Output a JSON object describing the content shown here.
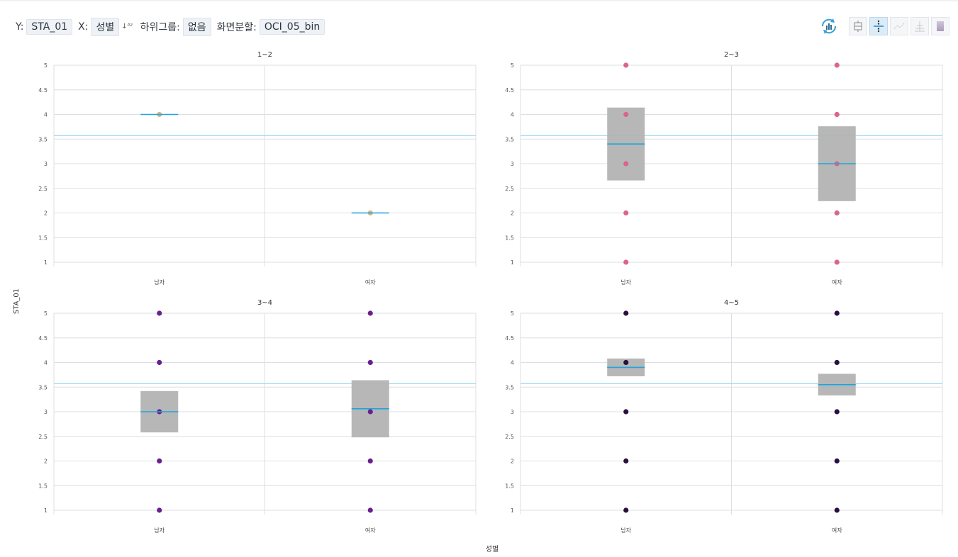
{
  "toolbar": {
    "y_label": "Y:",
    "y_value": "STA_01",
    "x_label": "X:",
    "x_value": "성별",
    "subgroup_label": "하위그룹:",
    "subgroup_value": "없음",
    "split_label": "화면분할:",
    "split_value": "OCI_05_bin"
  },
  "icons": [
    "refresh-chart-icon",
    "boxplot-icon",
    "dot-plot-icon",
    "line-plot-icon",
    "histogram-icon",
    "gradient-icon"
  ],
  "chart_data": [
    {
      "type": "box",
      "title": "1~2",
      "categories": [
        "남자",
        "여자"
      ],
      "ylim": [
        1,
        5
      ],
      "yticks": [
        "1",
        "1.5",
        "2",
        "2.5",
        "3",
        "3.5",
        "4",
        "4.5",
        "5"
      ],
      "reference_line": 3.57,
      "point_color": "#d4b48c",
      "groups": [
        {
          "category": "남자",
          "points": [
            4
          ],
          "mean": 4,
          "box": null
        },
        {
          "category": "여자",
          "points": [
            2
          ],
          "mean": 2,
          "box": null
        }
      ]
    },
    {
      "type": "box",
      "title": "2~3",
      "categories": [
        "남자",
        "여자"
      ],
      "ylim": [
        1,
        5
      ],
      "yticks": [
        "1",
        "1.5",
        "2",
        "2.5",
        "3",
        "3.5",
        "4",
        "4.5",
        "5"
      ],
      "reference_line": 3.57,
      "point_color": "#d9668a",
      "groups": [
        {
          "category": "남자",
          "points": [
            1,
            2,
            3,
            4,
            5
          ],
          "mean": 3.4,
          "box": [
            2.66,
            4.14
          ]
        },
        {
          "category": "여자",
          "points": [
            1,
            2,
            3,
            4,
            5
          ],
          "mean": 3.0,
          "box": [
            2.24,
            3.76
          ]
        }
      ]
    },
    {
      "type": "box",
      "title": "3~4",
      "categories": [
        "남자",
        "여자"
      ],
      "ylim": [
        1,
        5
      ],
      "yticks": [
        "1",
        "1.5",
        "2",
        "2.5",
        "3",
        "3.5",
        "4",
        "4.5",
        "5"
      ],
      "reference_line": 3.57,
      "point_color": "#6a1f8f",
      "groups": [
        {
          "category": "남자",
          "points": [
            1,
            2,
            3,
            4,
            5
          ],
          "mean": 3.0,
          "box": [
            2.58,
            3.42
          ]
        },
        {
          "category": "여자",
          "points": [
            1,
            2,
            3,
            4,
            5
          ],
          "mean": 3.06,
          "box": [
            2.48,
            3.64
          ]
        }
      ]
    },
    {
      "type": "box",
      "title": "4~5",
      "categories": [
        "남자",
        "여자"
      ],
      "ylim": [
        1,
        5
      ],
      "yticks": [
        "1",
        "1.5",
        "2",
        "2.5",
        "3",
        "3.5",
        "4",
        "4.5",
        "5"
      ],
      "reference_line": 3.57,
      "point_color": "#2a1040",
      "groups": [
        {
          "category": "남자",
          "points": [
            1,
            2,
            3,
            4,
            5
          ],
          "mean": 3.9,
          "box": [
            3.72,
            4.08
          ]
        },
        {
          "category": "여자",
          "points": [
            1,
            2,
            3,
            4,
            5
          ],
          "mean": 3.55,
          "box": [
            3.33,
            3.77
          ]
        }
      ]
    }
  ],
  "axes": {
    "y_title": "STA_01",
    "x_title": "성별"
  },
  "colors": {
    "mean_line": "#1ea5dc",
    "box_fill": "#b3b3b3",
    "reference_line": "#a8dcf0",
    "grid": "#dcdfe3"
  }
}
